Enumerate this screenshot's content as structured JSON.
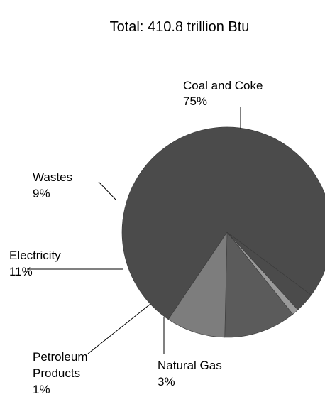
{
  "chart_data": {
    "type": "pie",
    "title": "Total: 410.8 trillion Btu",
    "slices": [
      {
        "label": "Coal and Coke",
        "value": 75,
        "value_label": "75%",
        "color": "#4b4b4b"
      },
      {
        "label": "Natural Gas",
        "value": 3,
        "value_label": "3%",
        "color": "#4b4b4b"
      },
      {
        "label": "Petroleum Products",
        "value": 1,
        "value_label": "1%",
        "color": "#9a9a9a"
      },
      {
        "label": "Electricity",
        "value": 11,
        "value_label": "11%",
        "color": "#5b5b5b"
      },
      {
        "label": "Wastes",
        "value": 9,
        "value_label": "9%",
        "color": "#7d7d7d"
      }
    ],
    "legend": "none"
  }
}
